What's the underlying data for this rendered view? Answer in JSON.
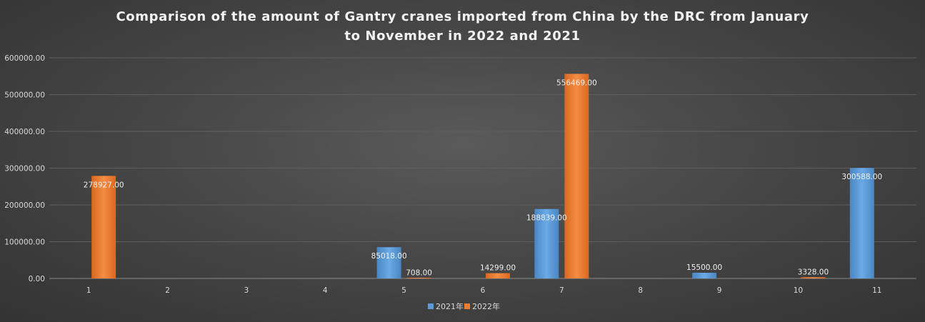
{
  "chart_data": {
    "type": "bar",
    "title": "Comparison of the amount of Gantry cranes imported from China by the DRC from January to November in 2022 and 2021",
    "xlabel": "",
    "ylabel": "",
    "categories": [
      "1",
      "2",
      "3",
      "4",
      "5",
      "6",
      "7",
      "8",
      "9",
      "10",
      "11"
    ],
    "series": [
      {
        "name": "2021年",
        "color": "#5b9bd5",
        "values": [
          null,
          null,
          null,
          null,
          85018.0,
          null,
          188839.0,
          null,
          15500.0,
          null,
          300588.0
        ],
        "labels": [
          "",
          "",
          "",
          "",
          "85018.00",
          "",
          "188839.00",
          "",
          "15500.00",
          "",
          "300588.00"
        ]
      },
      {
        "name": "2022年",
        "color": "#ed7d31",
        "values": [
          278927.0,
          null,
          null,
          null,
          708.0,
          14299.0,
          556469.0,
          null,
          null,
          3328.0,
          null
        ],
        "labels": [
          "278927.00",
          "",
          "",
          "",
          "708.00",
          "14299.00",
          "556469.00",
          "",
          "",
          "3328.00",
          ""
        ]
      }
    ],
    "ylim": [
      0,
      600000
    ],
    "yticks": [
      0,
      100000,
      200000,
      300000,
      400000,
      500000,
      600000
    ],
    "ytick_labels": [
      "0.00",
      "100000.00",
      "200000.00",
      "300000.00",
      "400000.00",
      "500000.00",
      "600000.00"
    ],
    "grid": true,
    "legend": "bottom"
  }
}
